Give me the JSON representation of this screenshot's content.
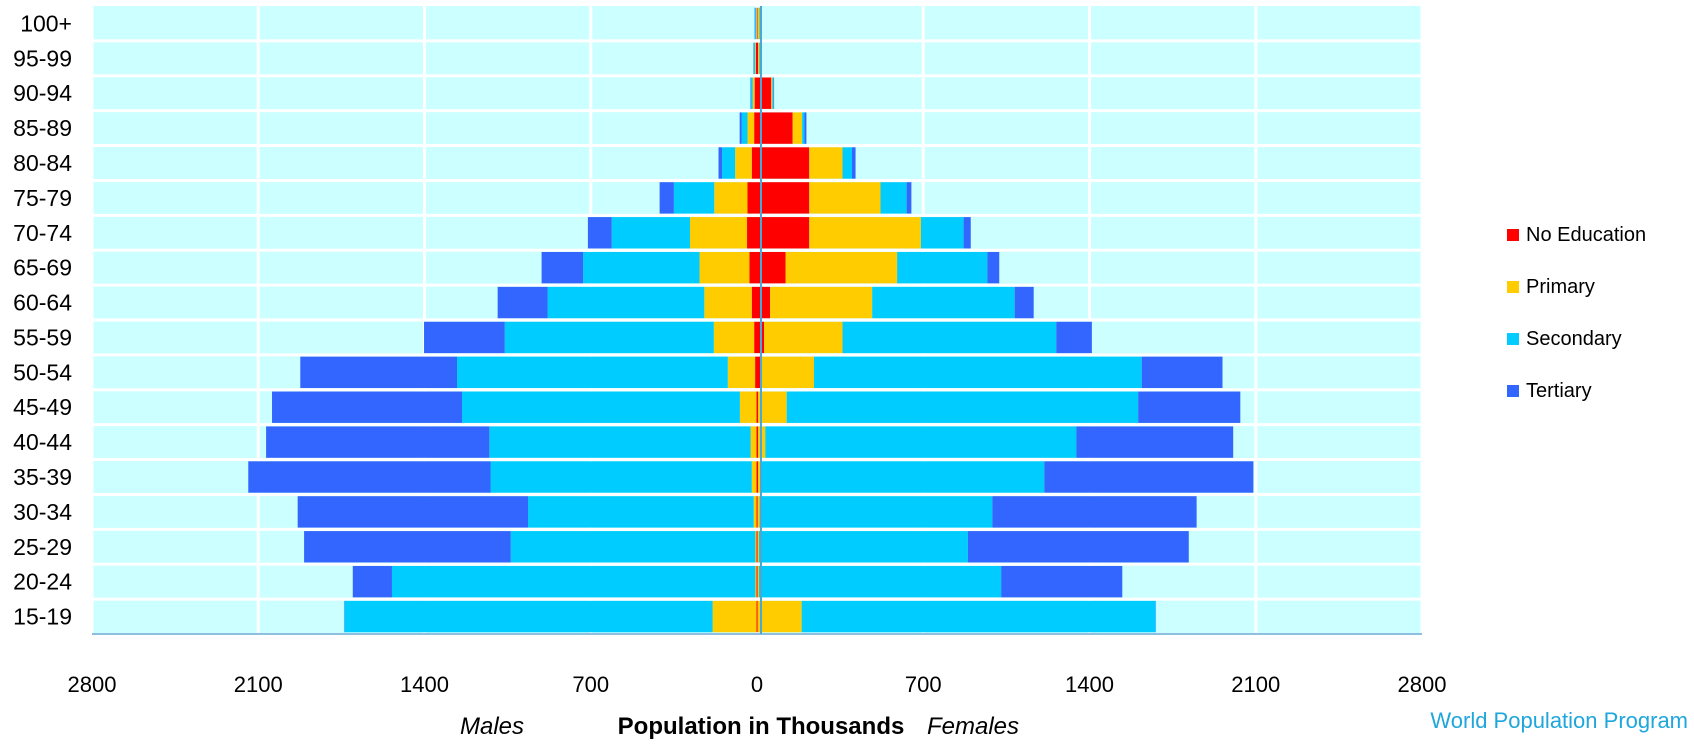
{
  "chart_data": {
    "type": "bar",
    "orientation": "horizontal",
    "stacked": true,
    "diverging": true,
    "categories": [
      "100+",
      "95-99",
      "90-94",
      "85-89",
      "80-84",
      "75-79",
      "70-74",
      "65-69",
      "60-64",
      "55-59",
      "50-54",
      "45-49",
      "40-44",
      "35-39",
      "30-34",
      "25-29",
      "20-24",
      "15-19"
    ],
    "xlabel": "Population in Thousands",
    "left_label": "Males",
    "right_label": "Females",
    "xticks": [
      2800,
      2100,
      1400,
      700,
      0,
      700,
      1400,
      2100,
      2800
    ],
    "xlim": [
      -2800,
      2800
    ],
    "grid": true,
    "legend_position": "right",
    "series": [
      {
        "name": "No Education",
        "color": "#ff0000",
        "males": [
          1,
          5,
          10,
          12,
          22,
          40,
          42,
          32,
          22,
          12,
          8,
          2,
          2,
          2,
          2,
          2,
          2,
          2
        ],
        "females": [
          2,
          5,
          60,
          150,
          220,
          220,
          220,
          120,
          55,
          30,
          20,
          5,
          5,
          5,
          3,
          3,
          3,
          3
        ]
      },
      {
        "name": "Primary",
        "color": "#ffcc00",
        "males": [
          2,
          3,
          8,
          28,
          70,
          140,
          240,
          210,
          200,
          170,
          115,
          70,
          25,
          20,
          12,
          5,
          5,
          185
        ],
        "females": [
          8,
          5,
          5,
          40,
          140,
          300,
          470,
          470,
          430,
          330,
          220,
          120,
          30,
          15,
          8,
          5,
          5,
          185
        ]
      },
      {
        "name": "Secondary",
        "color": "#00ccff",
        "males": [
          5,
          5,
          8,
          25,
          55,
          170,
          330,
          490,
          660,
          880,
          1140,
          1170,
          1100,
          1100,
          950,
          1030,
          1530,
          1550
        ],
        "females": [
          2,
          5,
          5,
          10,
          40,
          110,
          180,
          380,
          600,
          900,
          1380,
          1480,
          1310,
          1190,
          980,
          880,
          1020,
          1490
        ]
      },
      {
        "name": "Tertiary",
        "color": "#3366ff",
        "males": [
          2,
          2,
          2,
          8,
          15,
          60,
          100,
          175,
          210,
          340,
          660,
          800,
          940,
          1020,
          970,
          870,
          165,
          1
        ],
        "females": [
          2,
          2,
          2,
          8,
          15,
          20,
          30,
          50,
          80,
          150,
          340,
          430,
          660,
          880,
          860,
          930,
          510,
          1
        ]
      }
    ]
  },
  "credit": "World Population Program"
}
